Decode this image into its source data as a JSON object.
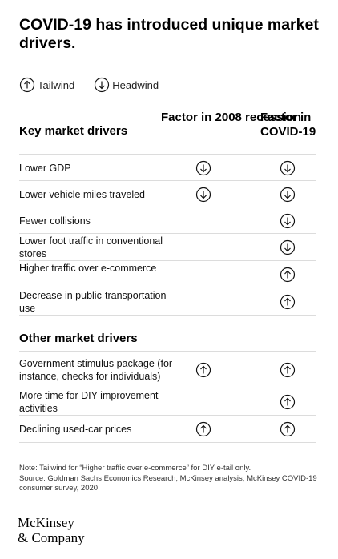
{
  "title": "COVID-19 has introduced unique market drivers.",
  "legend": {
    "tailwind": "Tailwind",
    "headwind": "Headwind"
  },
  "columns": {
    "recession": "Factor in 2008 recession",
    "covid": "Factor in COVID-19"
  },
  "sections": [
    {
      "title": "Key market drivers",
      "rows": [
        {
          "label": "Lower GDP",
          "recession": "headwind",
          "covid": "headwind"
        },
        {
          "label": "Lower vehicle miles traveled",
          "recession": "headwind",
          "covid": "headwind"
        },
        {
          "label": "Fewer collisions",
          "recession": "",
          "covid": "headwind"
        },
        {
          "label": "Lower foot traffic in conventional stores",
          "recession": "",
          "covid": "headwind"
        },
        {
          "label": "Higher traffic over e-commerce",
          "recession": "",
          "covid": "tailwind"
        },
        {
          "label": "Decrease in public-transportation use",
          "recession": "",
          "covid": "tailwind"
        }
      ]
    },
    {
      "title": "Other market drivers",
      "rows": [
        {
          "label": "Government stimulus package (for instance, checks for individuals)",
          "recession": "tailwind",
          "covid": "tailwind"
        },
        {
          "label": "More time for DIY improvement activities",
          "recession": "",
          "covid": "tailwind"
        },
        {
          "label": "Declining used-car prices",
          "recession": "tailwind",
          "covid": "tailwind"
        }
      ]
    }
  ],
  "note": "Note: Tailwind for “Higher traffic over e-commerce” for DIY e-tail only.",
  "source": "Source: Goldman Sachs Economics Research; McKinsey analysis; McKinsey COVID-19 consumer survey, 2020",
  "logo": {
    "line1": "McKinsey",
    "line2": "& Company"
  }
}
